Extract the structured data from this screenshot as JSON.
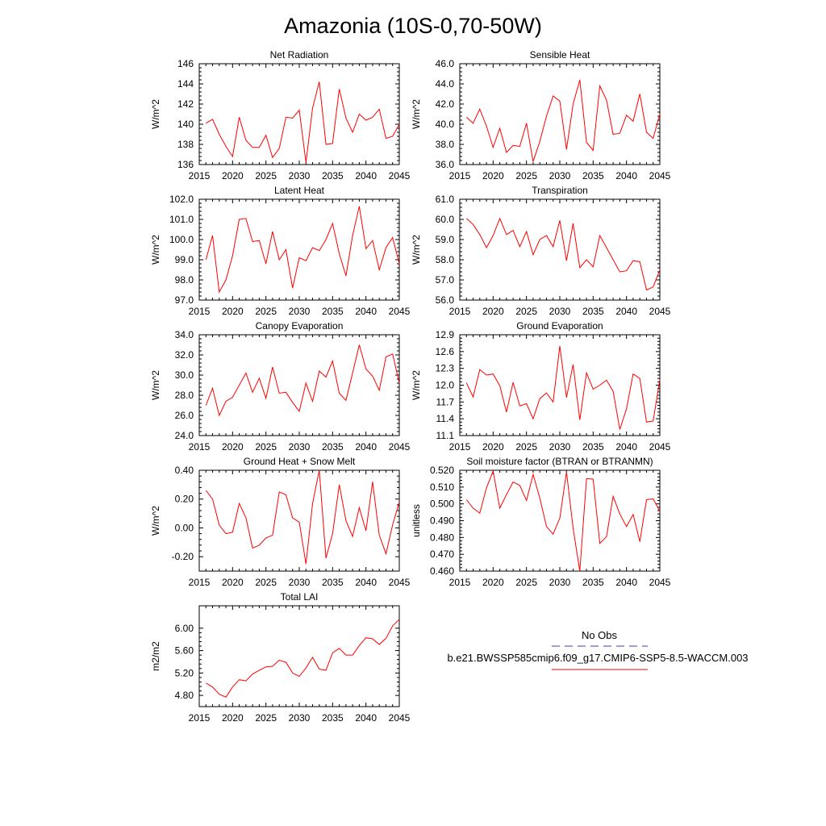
{
  "title": "Amazonia (10S-0,70-50W)",
  "legend": {
    "obs_label": "No Obs",
    "obs_line_color": "#4040a0",
    "model_label": "b.e21.BWSSP585cmip6.f09_g17.CMIP6-SSP5-8.5-WACCM.003",
    "model_line_color": "#ff0000"
  },
  "line_color": "#ff0000",
  "years": [
    2016,
    2017,
    2018,
    2019,
    2020,
    2021,
    2022,
    2023,
    2024,
    2025,
    2026,
    2027,
    2028,
    2029,
    2030,
    2031,
    2032,
    2033,
    2034,
    2035,
    2036,
    2037,
    2038,
    2039,
    2040,
    2041,
    2042,
    2043,
    2044,
    2045
  ],
  "chart_data": [
    {
      "type": "line",
      "title": "Net Radiation",
      "ylabel": "W/m^2",
      "xlim": [
        2015,
        2045
      ],
      "xticks": [
        "2015",
        "2020",
        "2025",
        "2030",
        "2035",
        "2040",
        "2045"
      ],
      "ylim": [
        136,
        146
      ],
      "yticks": [
        "136",
        "138",
        "140",
        "142",
        "144",
        "146"
      ],
      "values": [
        140.1,
        140.5,
        139.0,
        137.8,
        136.8,
        140.7,
        138.4,
        137.7,
        137.7,
        138.9,
        136.7,
        137.6,
        140.7,
        140.6,
        141.4,
        136.2,
        141.6,
        144.2,
        138.0,
        138.1,
        143.5,
        140.6,
        139.2,
        141.0,
        140.4,
        140.7,
        141.5,
        138.6,
        138.8,
        140.0
      ]
    },
    {
      "type": "line",
      "title": "Sensible Heat",
      "ylabel": "W/m^2",
      "xlim": [
        2015,
        2045
      ],
      "xticks": [
        "2015",
        "2020",
        "2025",
        "2030",
        "2035",
        "2040",
        "2045"
      ],
      "ylim": [
        36.0,
        46.0
      ],
      "yticks": [
        "36.0",
        "38.0",
        "40.0",
        "42.0",
        "44.0",
        "46.0"
      ],
      "values": [
        40.7,
        40.1,
        41.5,
        39.8,
        37.7,
        39.6,
        37.2,
        37.9,
        37.8,
        40.1,
        36.3,
        38.3,
        40.8,
        42.8,
        42.3,
        37.5,
        42.0,
        44.4,
        38.2,
        37.4,
        43.8,
        42.4,
        39.0,
        39.1,
        40.9,
        40.3,
        43.0,
        39.2,
        38.6,
        41.0
      ]
    },
    {
      "type": "line",
      "title": "Latent Heat",
      "ylabel": "W/m^2",
      "xlim": [
        2015,
        2045
      ],
      "xticks": [
        "2015",
        "2020",
        "2025",
        "2030",
        "2035",
        "2040",
        "2045"
      ],
      "ylim": [
        97.0,
        102.0
      ],
      "yticks": [
        "97.0",
        "98.0",
        "99.0",
        "100.0",
        "101.0",
        "102.0"
      ],
      "values": [
        99.0,
        100.2,
        97.4,
        98.0,
        99.2,
        101.0,
        101.05,
        99.9,
        99.95,
        98.8,
        100.4,
        99.0,
        99.5,
        97.6,
        99.1,
        98.95,
        99.6,
        99.45,
        100.0,
        100.8,
        99.3,
        98.2,
        100.2,
        101.65,
        99.55,
        99.95,
        98.5,
        99.6,
        100.1,
        98.8
      ]
    },
    {
      "type": "line",
      "title": "Transpiration",
      "ylabel": "W/m^2",
      "xlim": [
        2015,
        2045
      ],
      "xticks": [
        "2015",
        "2020",
        "2025",
        "2030",
        "2035",
        "2040",
        "2045"
      ],
      "ylim": [
        56.0,
        61.0
      ],
      "yticks": [
        "56.0",
        "57.0",
        "58.0",
        "59.0",
        "60.0",
        "61.0"
      ],
      "values": [
        60.05,
        59.75,
        59.25,
        58.6,
        59.2,
        60.05,
        59.25,
        59.45,
        58.65,
        59.4,
        58.25,
        59.0,
        59.2,
        58.65,
        59.95,
        57.95,
        59.8,
        57.6,
        58.0,
        57.65,
        59.2,
        58.6,
        58.0,
        57.4,
        57.45,
        57.95,
        57.9,
        56.5,
        56.65,
        57.5
      ]
    },
    {
      "type": "line",
      "title": "Canopy Evaporation",
      "ylabel": "W/m^2",
      "xlim": [
        2015,
        2045
      ],
      "xticks": [
        "2015",
        "2020",
        "2025",
        "2030",
        "2035",
        "2040",
        "2045"
      ],
      "ylim": [
        24.0,
        34.0
      ],
      "yticks": [
        "24.0",
        "26.0",
        "28.0",
        "30.0",
        "32.0",
        "34.0"
      ],
      "values": [
        27.0,
        28.7,
        26.0,
        27.4,
        27.8,
        29.0,
        30.2,
        28.3,
        29.7,
        27.7,
        30.8,
        28.2,
        28.3,
        27.3,
        26.4,
        29.2,
        27.4,
        30.4,
        29.8,
        31.4,
        28.2,
        27.5,
        30.2,
        33.0,
        30.6,
        29.9,
        28.5,
        31.8,
        32.1,
        29.2
      ]
    },
    {
      "type": "line",
      "title": "Ground Evaporation",
      "ylabel": "W/m^2",
      "xlim": [
        2015,
        2045
      ],
      "xticks": [
        "2015",
        "2020",
        "2025",
        "2030",
        "2035",
        "2040",
        "2045"
      ],
      "ylim": [
        11.1,
        12.9
      ],
      "yticks": [
        "11.1",
        "11.4",
        "11.7",
        "12.0",
        "12.3",
        "12.6",
        "12.9"
      ],
      "values": [
        12.04,
        11.79,
        12.28,
        12.18,
        12.2,
        11.99,
        11.52,
        12.05,
        11.63,
        11.67,
        11.4,
        11.76,
        11.86,
        11.7,
        12.7,
        11.78,
        12.37,
        11.38,
        12.22,
        11.93,
        12.0,
        12.09,
        11.89,
        11.21,
        11.58,
        12.2,
        12.12,
        11.34,
        11.36,
        12.1
      ]
    },
    {
      "type": "line",
      "title": "Ground Heat + Snow Melt",
      "ylabel": "W/m^2",
      "xlim": [
        2015,
        2045
      ],
      "xticks": [
        "2015",
        "2020",
        "2025",
        "2030",
        "2035",
        "2040",
        "2045"
      ],
      "ylim": [
        -0.3,
        0.4
      ],
      "yticks": [
        "-0.20",
        "0.00",
        "0.20",
        "0.40"
      ],
      "ytick_values": [
        -0.2,
        0.0,
        0.2,
        0.4
      ],
      "values": [
        0.26,
        0.2,
        0.02,
        -0.04,
        -0.03,
        0.17,
        0.07,
        -0.14,
        -0.12,
        -0.07,
        -0.05,
        0.25,
        0.23,
        0.07,
        0.04,
        -0.25,
        0.17,
        0.4,
        -0.21,
        -0.04,
        0.3,
        0.05,
        -0.06,
        0.14,
        -0.02,
        0.32,
        -0.05,
        -0.18,
        0.02,
        0.18
      ]
    },
    {
      "type": "line",
      "title": "Soil moisture factor (BTRAN or BTRANMN)",
      "ylabel": "unitless",
      "xlim": [
        2015,
        2045
      ],
      "xticks": [
        "2015",
        "2020",
        "2025",
        "2030",
        "2035",
        "2040",
        "2045"
      ],
      "ylim": [
        0.46,
        0.52
      ],
      "yticks": [
        "0.460",
        "0.470",
        "0.480",
        "0.490",
        "0.500",
        "0.510",
        "0.520"
      ],
      "values": [
        0.5025,
        0.4975,
        0.4945,
        0.5095,
        0.5195,
        0.4975,
        0.5055,
        0.513,
        0.511,
        0.502,
        0.5175,
        0.5035,
        0.4865,
        0.482,
        0.4915,
        0.519,
        0.4855,
        0.46,
        0.515,
        0.5147,
        0.4765,
        0.4805,
        0.5045,
        0.494,
        0.4865,
        0.4937,
        0.4775,
        0.5025,
        0.503,
        0.4955
      ]
    },
    {
      "type": "line",
      "title": "Total LAI",
      "ylabel": "m2/m2",
      "xlim": [
        2015,
        2045
      ],
      "xticks": [
        "2015",
        "2020",
        "2025",
        "2030",
        "2035",
        "2040",
        "2045"
      ],
      "ylim": [
        4.6,
        6.4
      ],
      "yticks": [
        "4.80",
        "5.20",
        "5.60",
        "6.00"
      ],
      "ytick_values": [
        4.8,
        5.2,
        5.6,
        6.0
      ],
      "values": [
        5.02,
        4.95,
        4.82,
        4.77,
        4.95,
        5.08,
        5.06,
        5.18,
        5.25,
        5.31,
        5.32,
        5.43,
        5.39,
        5.2,
        5.14,
        5.29,
        5.48,
        5.27,
        5.25,
        5.56,
        5.64,
        5.52,
        5.52,
        5.69,
        5.83,
        5.81,
        5.71,
        5.82,
        6.04,
        6.16
      ]
    }
  ]
}
